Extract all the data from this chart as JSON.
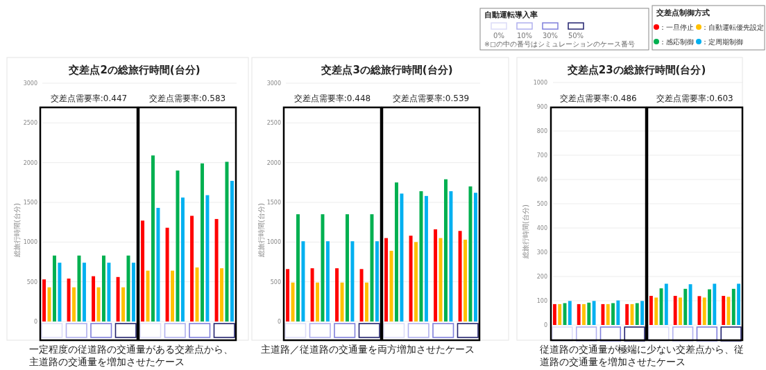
{
  "chart_data": [
    {
      "type": "bar",
      "title": "交差点2の総旅行時間(台分)",
      "ylabel": "総旅行時間(台分)",
      "legend": "top right",
      "legend_title": "交差点制御方式",
      "grid": "y",
      "categories": [
        null,
        null,
        null,
        null,
        null,
        null,
        null,
        null
      ],
      "ylim": [
        0,
        3000
      ],
      "yticks": [
        0,
        500,
        1000,
        1500,
        2000,
        2500,
        3000
      ],
      "series": [
        {
          "name": "：一旦停止",
          "color": "#ff0000",
          "values": [
            530,
            540,
            570,
            560,
            1270,
            1180,
            1330,
            1290
          ]
        },
        {
          "name": "：自動運転優先設定",
          "color": "#ffc000",
          "values": [
            430,
            430,
            430,
            430,
            640,
            640,
            680,
            670
          ]
        },
        {
          "name": "：感応制御",
          "color": "#00b050",
          "values": [
            830,
            830,
            830,
            830,
            2090,
            1900,
            1990,
            2010
          ]
        },
        {
          "name": "：定周期制御",
          "color": "#00b0f0",
          "values": [
            740,
            740,
            740,
            740,
            1430,
            1560,
            1590,
            1770
          ]
        }
      ],
      "annotations": [
        "交差点需要率:0.447",
        "交差点需要率:0.583",
        "一定程度の従道路の交通量がある交差点から、主道路の交通量を増加させたケース"
      ]
    },
    {
      "type": "bar",
      "title": "交差点3の総旅行時間(台分)",
      "ylabel": "総旅行時間(台分)",
      "grid": "y",
      "categories": [
        null,
        null,
        null,
        null,
        null,
        null,
        null,
        null
      ],
      "ylim": [
        0,
        3000
      ],
      "yticks": [
        0,
        500,
        1000,
        1500,
        2000,
        2500,
        3000
      ],
      "series": [
        {
          "color": "#ff0000",
          "values": [
            660,
            670,
            670,
            660,
            1050,
            1080,
            1160,
            1140
          ]
        },
        {
          "color": "#ffc000",
          "values": [
            490,
            490,
            490,
            490,
            890,
            1000,
            1050,
            1030
          ]
        },
        {
          "color": "#00b050",
          "values": [
            1350,
            1350,
            1350,
            1350,
            1750,
            1640,
            1790,
            1700
          ]
        },
        {
          "color": "#00b0f0",
          "values": [
            1010,
            1010,
            1010,
            1010,
            1610,
            1580,
            1640,
            1620
          ]
        }
      ],
      "annotations": [
        "交差点需要率:0.448",
        "交差点需要率:0.539",
        "主道路／従道路の交通量を両方増加させたケース"
      ]
    },
    {
      "type": "bar",
      "title": "交差点23の総旅行時間(台分)",
      "ylabel": "総旅行時間(台分)",
      "grid": "y",
      "categories": [
        null,
        null,
        null,
        null,
        null,
        null,
        null,
        null
      ],
      "ylim": [
        0,
        1000
      ],
      "yticks": [
        0,
        100,
        200,
        300,
        400,
        500,
        600,
        700,
        800,
        900,
        1000
      ],
      "series": [
        {
          "color": "#ff0000",
          "values": [
            86,
            86,
            86,
            86,
            120,
            120,
            119,
            120
          ]
        },
        {
          "color": "#ffc000",
          "values": [
            86,
            86,
            86,
            86,
            113,
            113,
            113,
            116
          ]
        },
        {
          "color": "#00b050",
          "values": [
            90,
            92,
            90,
            90,
            151,
            149,
            147,
            149
          ]
        },
        {
          "color": "#00b0f0",
          "values": [
            99,
            99,
            101,
            99,
            170,
            168,
            170,
            170
          ]
        }
      ],
      "annotations": [
        "交差点需要率:0.486",
        "交差点需要率:0.603",
        "従道路の交通量が極端に少ない交差点から、従道路の交通量を増加させたケース"
      ]
    },
    {
      "type": "other",
      "title": "自動運転導入率",
      "annotations": [
        "0%",
        "10%",
        "30%",
        "50%",
        "※□の中の番号はシミュレーションのケース番号"
      ]
    }
  ]
}
